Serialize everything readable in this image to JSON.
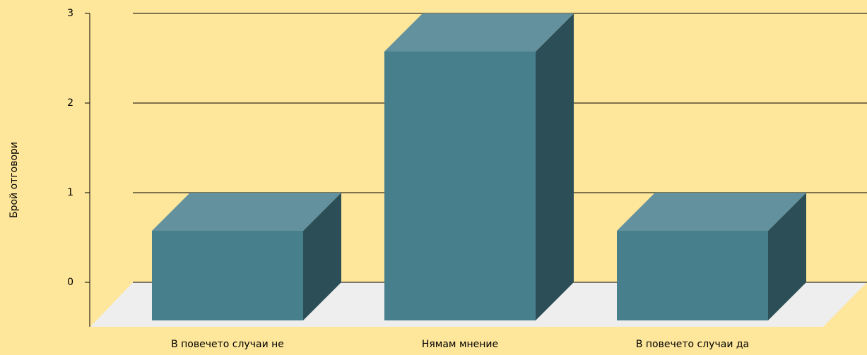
{
  "chart_data": {
    "type": "bar3d",
    "y_label": "Брой отговори",
    "categories": [
      "В повечето случаи не",
      "Нямам мнение",
      "В повечето случаи да"
    ],
    "values": [
      1,
      3,
      1
    ],
    "color": "#477f8d",
    "ylim": [
      0,
      3
    ],
    "yticks": [
      0,
      1,
      2,
      3
    ],
    "grid": true
  }
}
